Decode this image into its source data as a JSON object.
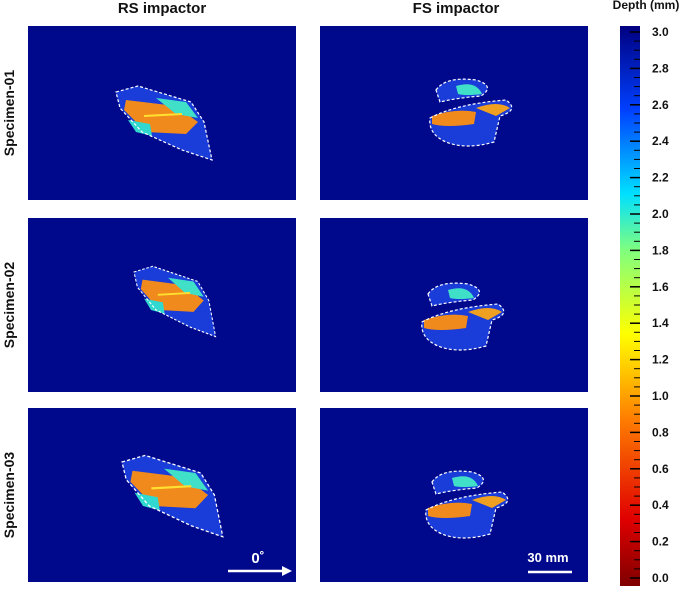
{
  "columns": [
    "RS impactor",
    "FS impactor"
  ],
  "rows": [
    "Specimen-01",
    "Specimen-02",
    "Specimen-03"
  ],
  "colorbar": {
    "title": "Depth (mm)",
    "ticks": [
      "0.0",
      "0.2",
      "0.4",
      "0.6",
      "0.8",
      "1.0",
      "1.2",
      "1.4",
      "1.6",
      "1.8",
      "2.0",
      "2.2",
      "2.4",
      "2.6",
      "2.8",
      "3.0"
    ]
  },
  "annotations": {
    "angle": "0˚",
    "scale": "30 mm"
  }
}
